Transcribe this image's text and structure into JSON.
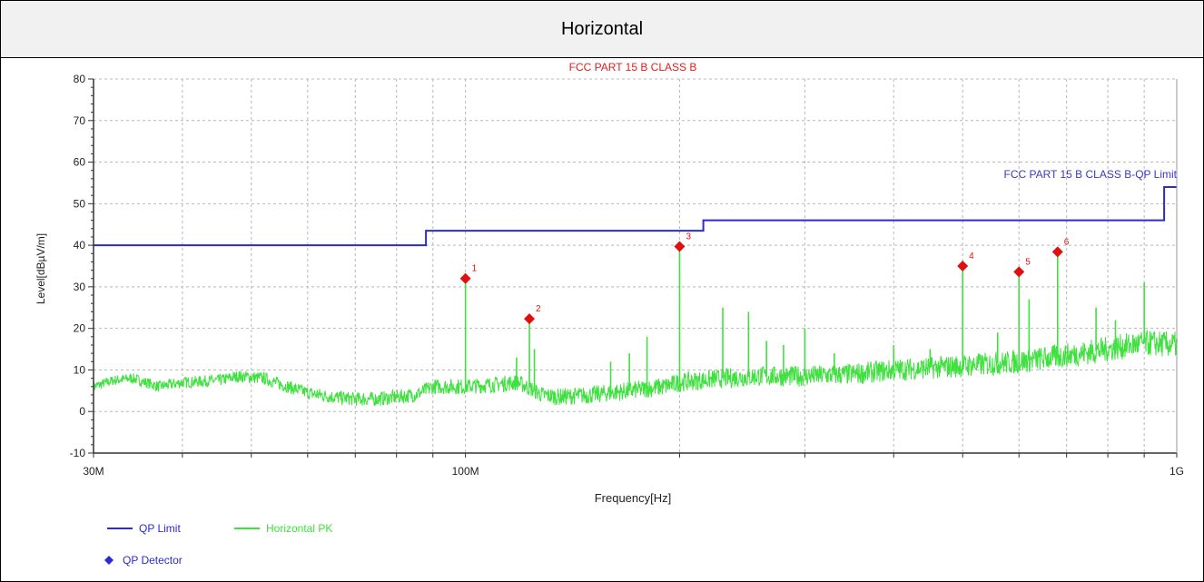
{
  "header": {
    "title": "Horizontal"
  },
  "chart_data": {
    "type": "line",
    "title": "FCC PART 15 B CLASS B",
    "xlabel": "Frequency[Hz]",
    "ylabel": "Level[dBµV/m]",
    "x_scale": "log",
    "xlim": [
      30000000,
      1000000000
    ],
    "ylim": [
      -10,
      80
    ],
    "yticks": [
      -10,
      0,
      10,
      20,
      30,
      40,
      50,
      60,
      70,
      80
    ],
    "xtick_labels": [
      {
        "x": 30000000,
        "label": "30M"
      },
      {
        "x": 100000000,
        "label": "100M"
      },
      {
        "x": 1000000000,
        "label": "1G"
      }
    ],
    "grid": true,
    "limit_annotation": "FCC PART 15 B CLASS B-QP Limit",
    "colors": {
      "limit": "#2b2bd0",
      "pk": "#3fe03f",
      "marker": "#e01010",
      "title": "#e02020",
      "annotation": "#3a3ac0"
    },
    "legend_placement": "bottom-left",
    "legend": [
      {
        "label": "QP Limit",
        "symbol": "line",
        "color": "#2b2bd0"
      },
      {
        "label": "Horizontal PK",
        "symbol": "line",
        "color": "#3fe03f"
      },
      {
        "label": "QP Detector",
        "symbol": "diamond",
        "color": "#2b2bd0"
      }
    ],
    "series": [
      {
        "name": "QP Limit",
        "type": "step",
        "points": [
          [
            30000000,
            40
          ],
          [
            88000000,
            40
          ],
          [
            88000000,
            43.5
          ],
          [
            216000000,
            43.5
          ],
          [
            216000000,
            46
          ],
          [
            960000000,
            46
          ],
          [
            960000000,
            54
          ],
          [
            1000000000,
            54
          ]
        ]
      },
      {
        "name": "Horizontal PK",
        "type": "line",
        "baseline": [
          [
            30000000,
            6
          ],
          [
            32000000,
            7.5
          ],
          [
            34000000,
            8
          ],
          [
            37000000,
            6
          ],
          [
            40000000,
            7
          ],
          [
            45000000,
            7.5
          ],
          [
            48000000,
            8.5
          ],
          [
            52000000,
            8
          ],
          [
            55000000,
            6.5
          ],
          [
            60000000,
            4.5
          ],
          [
            65000000,
            3.5
          ],
          [
            70000000,
            3
          ],
          [
            75000000,
            3
          ],
          [
            80000000,
            3.5
          ],
          [
            85000000,
            4
          ],
          [
            90000000,
            6
          ],
          [
            100000000,
            6
          ],
          [
            110000000,
            6.5
          ],
          [
            118000000,
            7
          ],
          [
            122000000,
            6
          ],
          [
            128000000,
            4
          ],
          [
            135000000,
            3.5
          ],
          [
            150000000,
            4
          ],
          [
            170000000,
            5
          ],
          [
            190000000,
            6
          ],
          [
            200000000,
            7
          ],
          [
            230000000,
            8
          ],
          [
            260000000,
            8.5
          ],
          [
            300000000,
            8.5
          ],
          [
            350000000,
            9
          ],
          [
            400000000,
            10
          ],
          [
            450000000,
            10.5
          ],
          [
            500000000,
            11
          ],
          [
            600000000,
            12
          ],
          [
            700000000,
            13.5
          ],
          [
            800000000,
            15
          ],
          [
            900000000,
            16.5
          ],
          [
            1000000000,
            16
          ]
        ],
        "peaks": [
          [
            100000000,
            32
          ],
          [
            118000000,
            13
          ],
          [
            123000000,
            22
          ],
          [
            125000000,
            15
          ],
          [
            160000000,
            12
          ],
          [
            170000000,
            14
          ],
          [
            180000000,
            18
          ],
          [
            200000000,
            40
          ],
          [
            230000000,
            25
          ],
          [
            250000000,
            24
          ],
          [
            265000000,
            17
          ],
          [
            280000000,
            16
          ],
          [
            300000000,
            20
          ],
          [
            330000000,
            14
          ],
          [
            400000000,
            16
          ],
          [
            450000000,
            15
          ],
          [
            500000000,
            35
          ],
          [
            560000000,
            19
          ],
          [
            600000000,
            33.5
          ],
          [
            620000000,
            27
          ],
          [
            680000000,
            38.5
          ],
          [
            770000000,
            25
          ],
          [
            820000000,
            22
          ],
          [
            900000000,
            31
          ]
        ]
      }
    ],
    "markers": [
      {
        "label": "1",
        "x": 100000000,
        "y": 32
      },
      {
        "label": "2",
        "x": 123000000,
        "y": 22.3
      },
      {
        "label": "3",
        "x": 200000000,
        "y": 39.7
      },
      {
        "label": "4",
        "x": 500000000,
        "y": 35
      },
      {
        "label": "5",
        "x": 600000000,
        "y": 33.6
      },
      {
        "label": "6",
        "x": 680000000,
        "y": 38.4
      }
    ]
  }
}
